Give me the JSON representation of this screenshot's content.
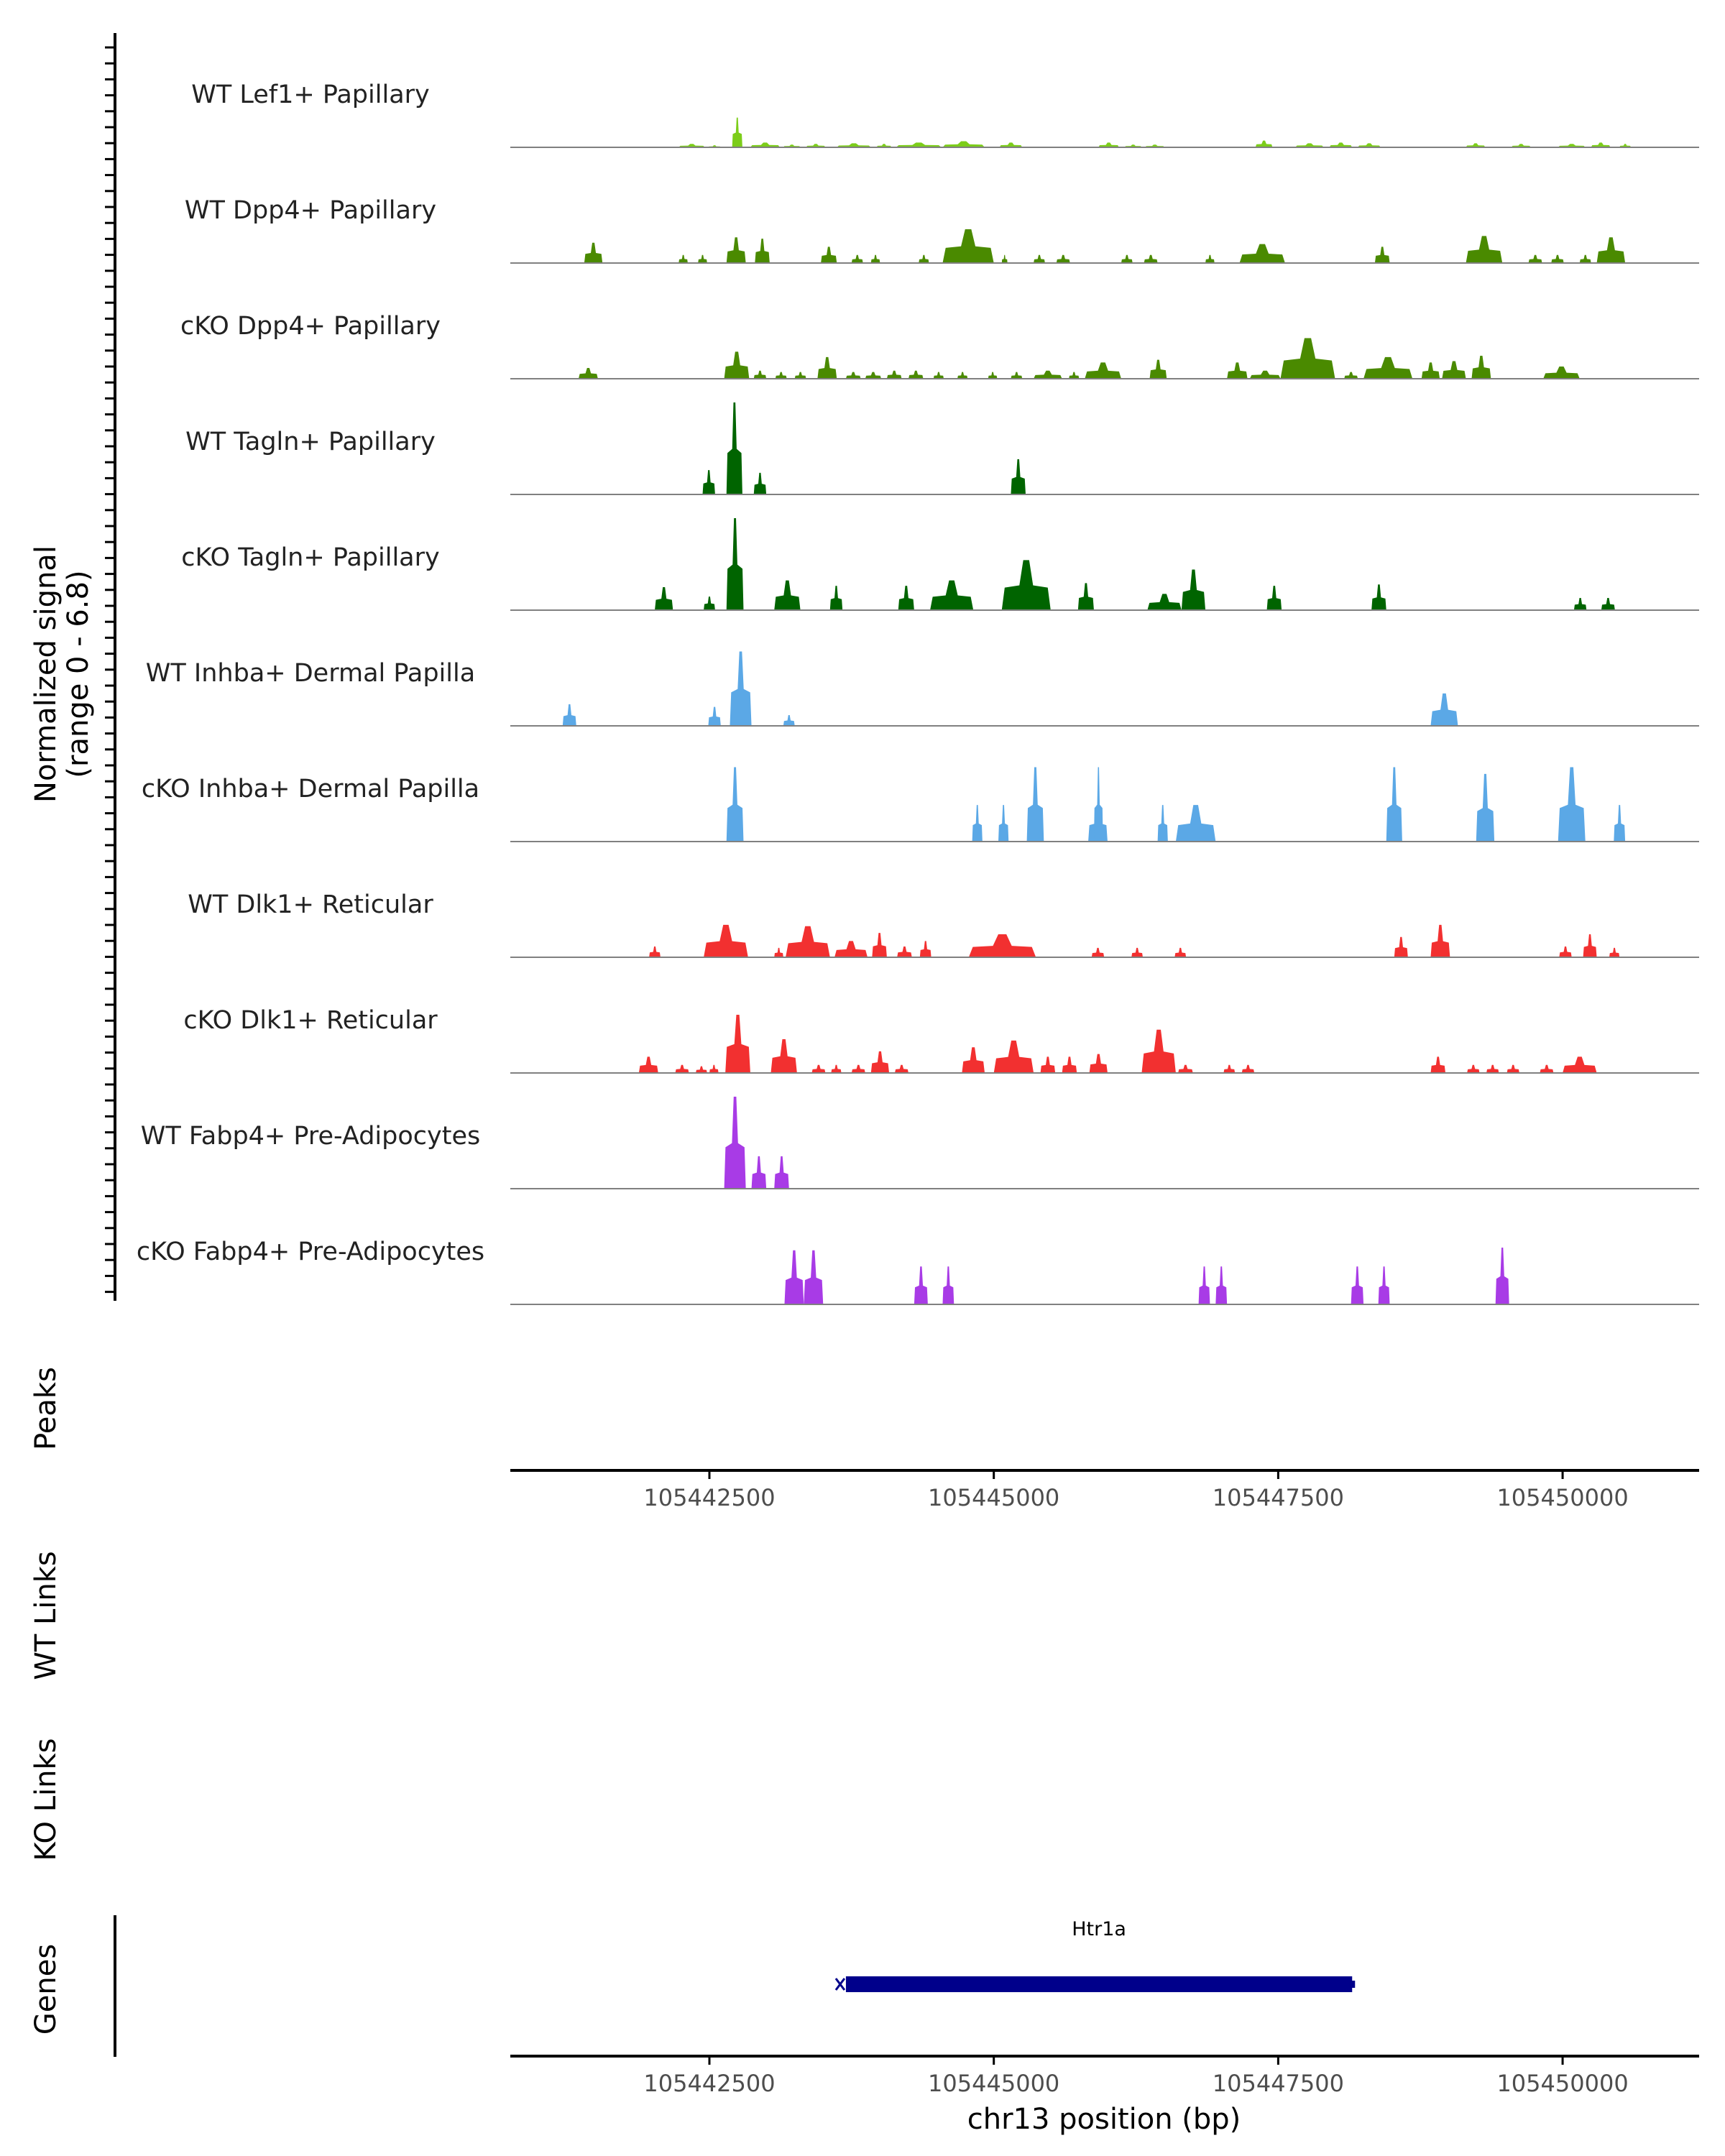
{
  "chart_data": {
    "type": "area",
    "subtype": "genome-coverage-track",
    "chromosome": "chr13",
    "x_range": [
      105440750,
      105451200
    ],
    "y_range": [
      0,
      6.8
    ],
    "ylabel_lines": [
      "Normalized signal",
      "(range 0 - 6.8)"
    ],
    "xlabel": "chr13 position (bp)",
    "x_ticks": [
      105442500,
      105445000,
      105447500,
      105450000
    ],
    "x_tick_labels": [
      "105442500",
      "105445000",
      "105447500",
      "105450000"
    ],
    "tracks": [
      {
        "name": "WT Lef1+ Papillary",
        "color": "#7CCD1A",
        "peaks": [
          [
            105442230,
            105442460,
            0.25
          ],
          [
            105442490,
            105442600,
            0.15
          ],
          [
            105442700,
            105442790,
            2.2
          ],
          [
            105442860,
            105443120,
            0.35
          ],
          [
            105443150,
            105443300,
            0.2
          ],
          [
            105443350,
            105443520,
            0.25
          ],
          [
            105443620,
            105443920,
            0.3
          ],
          [
            105443970,
            105444100,
            0.25
          ],
          [
            105444140,
            105444540,
            0.35
          ],
          [
            105444550,
            105444920,
            0.45
          ],
          [
            105445050,
            105445250,
            0.35
          ],
          [
            105445920,
            105446100,
            0.35
          ],
          [
            105446150,
            105446300,
            0.2
          ],
          [
            105446330,
            105446500,
            0.2
          ],
          [
            105447300,
            105447450,
            0.5
          ],
          [
            105447650,
            105447900,
            0.3
          ],
          [
            105447950,
            105448150,
            0.35
          ],
          [
            105448200,
            105448400,
            0.3
          ],
          [
            105449150,
            105449320,
            0.3
          ],
          [
            105449550,
            105449720,
            0.25
          ],
          [
            105449960,
            105450200,
            0.25
          ],
          [
            105450250,
            105450420,
            0.35
          ],
          [
            105450500,
            105450600,
            0.25
          ]
        ]
      },
      {
        "name": "WT Dpp4+ Papillary",
        "color": "#4A8A00",
        "peaks": [
          [
            105441400,
            105441560,
            1.5
          ],
          [
            105442230,
            105442310,
            0.6
          ],
          [
            105442400,
            105442480,
            0.6
          ],
          [
            105442650,
            105442820,
            1.9
          ],
          [
            105442900,
            105443030,
            1.8
          ],
          [
            105443480,
            105443620,
            1.2
          ],
          [
            105443750,
            105443850,
            0.6
          ],
          [
            105443920,
            105444000,
            0.6
          ],
          [
            105444340,
            105444430,
            0.6
          ],
          [
            105444550,
            105445000,
            2.5
          ],
          [
            105445070,
            105445120,
            0.6
          ],
          [
            105445350,
            105445450,
            0.6
          ],
          [
            105445550,
            105445670,
            0.6
          ],
          [
            105446120,
            105446220,
            0.6
          ],
          [
            105446320,
            105446440,
            0.6
          ],
          [
            105446860,
            105446940,
            0.6
          ],
          [
            105447160,
            105447560,
            1.4
          ],
          [
            105448350,
            105448480,
            1.2
          ],
          [
            105449150,
            105449470,
            2.0
          ],
          [
            105449700,
            105449820,
            0.6
          ],
          [
            105449900,
            105450010,
            0.6
          ],
          [
            105450150,
            105450250,
            0.6
          ],
          [
            105450300,
            105450550,
            1.9
          ]
        ]
      },
      {
        "name": "cKO Dpp4+ Papillary",
        "color": "#4A8A00",
        "peaks": [
          [
            105441350,
            105441520,
            0.8
          ],
          [
            105442630,
            105442850,
            2.0
          ],
          [
            105442890,
            105443000,
            0.6
          ],
          [
            105443080,
            105443180,
            0.5
          ],
          [
            105443250,
            105443350,
            0.5
          ],
          [
            105443450,
            105443620,
            1.6
          ],
          [
            105443700,
            105443830,
            0.5
          ],
          [
            105443870,
            105444010,
            0.5
          ],
          [
            105444060,
            105444190,
            0.6
          ],
          [
            105444250,
            105444380,
            0.6
          ],
          [
            105444470,
            105444560,
            0.5
          ],
          [
            105444680,
            105444770,
            0.5
          ],
          [
            105444950,
            105445030,
            0.5
          ],
          [
            105445150,
            105445250,
            0.5
          ],
          [
            105445350,
            105445600,
            0.6
          ],
          [
            105445660,
            105445750,
            0.5
          ],
          [
            105445800,
            105446120,
            1.2
          ],
          [
            105446370,
            105446520,
            1.4
          ],
          [
            105447050,
            105447230,
            1.2
          ],
          [
            105447250,
            105447520,
            0.6
          ],
          [
            105447520,
            105448000,
            3.0
          ],
          [
            105448080,
            105448200,
            0.5
          ],
          [
            105448250,
            105448680,
            1.6
          ],
          [
            105448760,
            105448920,
            1.2
          ],
          [
            105448940,
            105449150,
            1.3
          ],
          [
            105449200,
            105449370,
            1.7
          ],
          [
            105449830,
            105450150,
            0.9
          ]
        ]
      },
      {
        "name": "WT Tagln+ Papillary",
        "color": "#006400",
        "peaks": [
          [
            105442440,
            105442550,
            1.8
          ],
          [
            105442650,
            105442790,
            6.8
          ],
          [
            105442890,
            105443000,
            1.6
          ],
          [
            105445150,
            105445280,
            2.6
          ]
        ]
      },
      {
        "name": "cKO Tagln+ Papillary",
        "color": "#006400",
        "peaks": [
          [
            105442020,
            105442180,
            1.7
          ],
          [
            105442450,
            105442550,
            1.0
          ],
          [
            105442650,
            105442800,
            6.8
          ],
          [
            105443070,
            105443300,
            2.2
          ],
          [
            105443560,
            105443670,
            1.8
          ],
          [
            105444160,
            105444300,
            1.8
          ],
          [
            105444440,
            105444820,
            2.2
          ],
          [
            105445070,
            105445500,
            3.7
          ],
          [
            105445740,
            105445880,
            2.0
          ],
          [
            105446350,
            105446650,
            1.2
          ],
          [
            105446650,
            105446860,
            3.0
          ],
          [
            105447400,
            105447530,
            1.8
          ],
          [
            105448320,
            105448450,
            1.9
          ],
          [
            105450100,
            105450210,
            0.9
          ],
          [
            105450340,
            105450460,
            0.9
          ]
        ]
      },
      {
        "name": "WT Inhba+ Dermal Papilla",
        "color": "#5BA8E6",
        "peaks": [
          [
            105441210,
            105441330,
            1.6
          ],
          [
            105442490,
            105442600,
            1.4
          ],
          [
            105442680,
            105442870,
            5.5
          ],
          [
            105443150,
            105443250,
            0.8
          ],
          [
            105448840,
            105449080,
            2.4
          ]
        ]
      },
      {
        "name": "cKO Inhba+ Dermal Papilla",
        "color": "#5BA8E6",
        "peaks": [
          [
            105442650,
            105442800,
            5.5
          ],
          [
            105444810,
            105444900,
            2.7
          ],
          [
            105445040,
            105445130,
            2.7
          ],
          [
            105445290,
            105445440,
            5.5
          ],
          [
            105445830,
            105446000,
            2.7
          ],
          [
            105445880,
            105445960,
            5.5
          ],
          [
            105446440,
            105446530,
            2.7
          ],
          [
            105446600,
            105446950,
            2.7
          ],
          [
            105448450,
            105448590,
            5.5
          ],
          [
            105449240,
            105449400,
            5.0
          ],
          [
            105449960,
            105450200,
            5.5
          ],
          [
            105450450,
            105450550,
            2.7
          ]
        ]
      },
      {
        "name": "WT Dlk1+ Reticular",
        "color": "#F23030",
        "peaks": [
          [
            105441970,
            105442070,
            0.8
          ],
          [
            105442450,
            105442840,
            2.4
          ],
          [
            105443070,
            105443150,
            0.7
          ],
          [
            105443170,
            105443560,
            2.3
          ],
          [
            105443600,
            105443890,
            1.2
          ],
          [
            105443930,
            105444060,
            1.8
          ],
          [
            105444150,
            105444280,
            0.8
          ],
          [
            105444350,
            105444450,
            1.2
          ],
          [
            105444780,
            105445370,
            1.7
          ],
          [
            105445860,
            105445970,
            0.7
          ],
          [
            105446210,
            105446310,
            0.7
          ],
          [
            105446590,
            105446690,
            0.7
          ],
          [
            105448520,
            105448640,
            1.5
          ],
          [
            105448840,
            105449010,
            2.4
          ],
          [
            105449970,
            105450080,
            0.8
          ],
          [
            105450180,
            105450300,
            1.7
          ],
          [
            105450410,
            105450500,
            0.7
          ]
        ]
      },
      {
        "name": "cKO Dlk1+ Reticular",
        "color": "#F23030",
        "peaks": [
          [
            105441880,
            105442050,
            1.2
          ],
          [
            105442200,
            105442320,
            0.6
          ],
          [
            105442380,
            105442480,
            0.5
          ],
          [
            105442500,
            105442580,
            0.6
          ],
          [
            105442640,
            105442860,
            4.3
          ],
          [
            105443040,
            105443270,
            2.5
          ],
          [
            105443400,
            105443520,
            0.6
          ],
          [
            105443570,
            105443660,
            0.6
          ],
          [
            105443750,
            105443870,
            0.6
          ],
          [
            105443920,
            105444080,
            1.6
          ],
          [
            105444130,
            105444250,
            0.6
          ],
          [
            105444720,
            105444920,
            1.9
          ],
          [
            105445000,
            105445350,
            2.4
          ],
          [
            105445410,
            105445540,
            1.2
          ],
          [
            105445600,
            105445730,
            1.2
          ],
          [
            105445840,
            105446000,
            1.4
          ],
          [
            105446300,
            105446600,
            3.2
          ],
          [
            105446620,
            105446750,
            0.6
          ],
          [
            105447020,
            105447120,
            0.6
          ],
          [
            105447180,
            105447290,
            0.6
          ],
          [
            105448840,
            105448970,
            1.2
          ],
          [
            105449160,
            105449270,
            0.6
          ],
          [
            105449330,
            105449440,
            0.6
          ],
          [
            105449510,
            105449620,
            0.6
          ],
          [
            105449800,
            105449920,
            0.6
          ],
          [
            105450000,
            105450300,
            1.2
          ]
        ]
      },
      {
        "name": "WT Fabp4+ Pre-Adipocytes",
        "color": "#A83BE6",
        "peaks": [
          [
            105442630,
            105442820,
            6.8
          ],
          [
            105442870,
            105443000,
            2.4
          ],
          [
            105443070,
            105443200,
            2.4
          ]
        ]
      },
      {
        "name": "cKO Fabp4+ Pre-Adipocytes",
        "color": "#A83BE6",
        "peaks": [
          [
            105443160,
            105443330,
            4.0
          ],
          [
            105443330,
            105443500,
            4.0
          ],
          [
            105444300,
            105444420,
            2.8
          ],
          [
            105444550,
            105444650,
            2.8
          ],
          [
            105446800,
            105446900,
            2.8
          ],
          [
            105446950,
            105447050,
            2.8
          ],
          [
            105448140,
            105448250,
            2.8
          ],
          [
            105448380,
            105448480,
            2.8
          ],
          [
            105449410,
            105449530,
            4.2
          ]
        ]
      }
    ],
    "empty_panels": [
      "Peaks",
      "WT Links",
      "KO Links"
    ],
    "genes_panel_label": "Genes",
    "genes": [
      {
        "name": "Htr1a",
        "start": 105443700,
        "end": 105448150,
        "strand": "-",
        "color": "#00008B"
      }
    ]
  }
}
